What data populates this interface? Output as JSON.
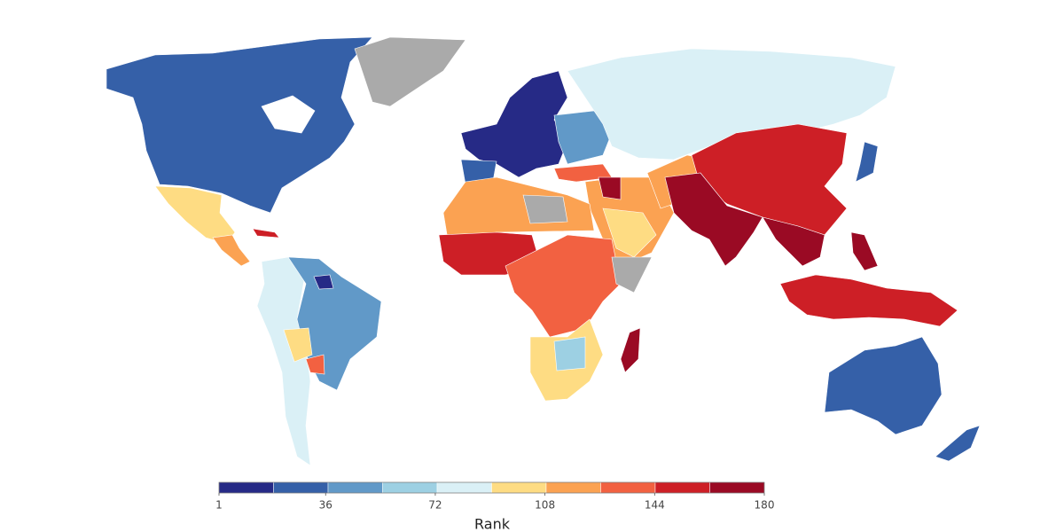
{
  "legend": {
    "title": "Rank",
    "range": [
      1,
      180
    ],
    "ticks": [
      1,
      36,
      72,
      108,
      144,
      180
    ],
    "colors": [
      "#262a86",
      "#3560a8",
      "#6199c8",
      "#9dd0e3",
      "#daf0f6",
      "#fedc83",
      "#fba252",
      "#f26141",
      "#cd1f26",
      "#9a0a24"
    ]
  }
}
